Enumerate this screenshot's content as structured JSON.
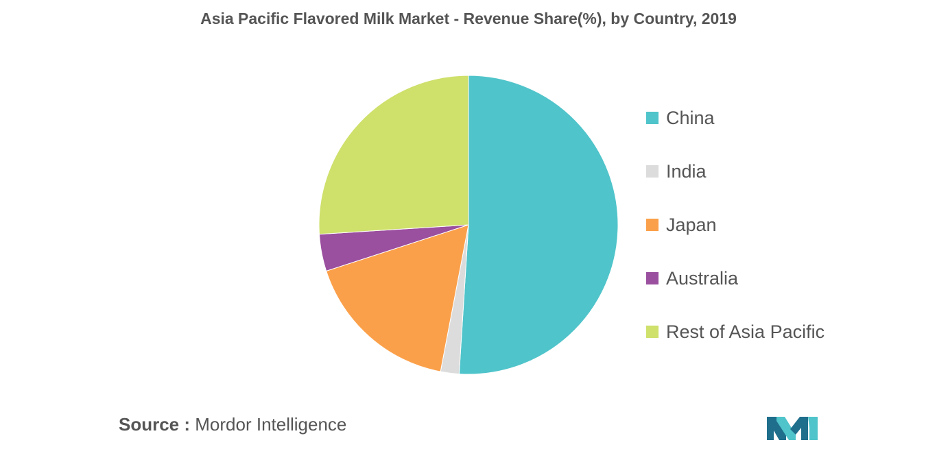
{
  "chart_data": {
    "type": "pie",
    "title": "Asia Pacific Flavored Milk Market - Revenue Share(%), by Country, 2019",
    "start_angle_deg": 0,
    "direction": "clockwise",
    "slices": [
      {
        "label": "China",
        "value": 51,
        "color": "#4fc4ca"
      },
      {
        "label": "India",
        "value": 2,
        "color": "#dcdcdc"
      },
      {
        "label": "Japan",
        "value": 17,
        "color": "#fba04a"
      },
      {
        "label": "Australia",
        "value": 4,
        "color": "#9b4f9f"
      },
      {
        "label": "Rest of Asia Pacific",
        "value": 26,
        "color": "#cfe06b"
      }
    ],
    "legend_position": "right"
  },
  "source": {
    "label": "Source :",
    "text": "Mordor Intelligence"
  },
  "logo": {
    "icon": "mordor-intelligence-logo",
    "colors": [
      "#1f6e8c",
      "#4fc4ca"
    ]
  }
}
